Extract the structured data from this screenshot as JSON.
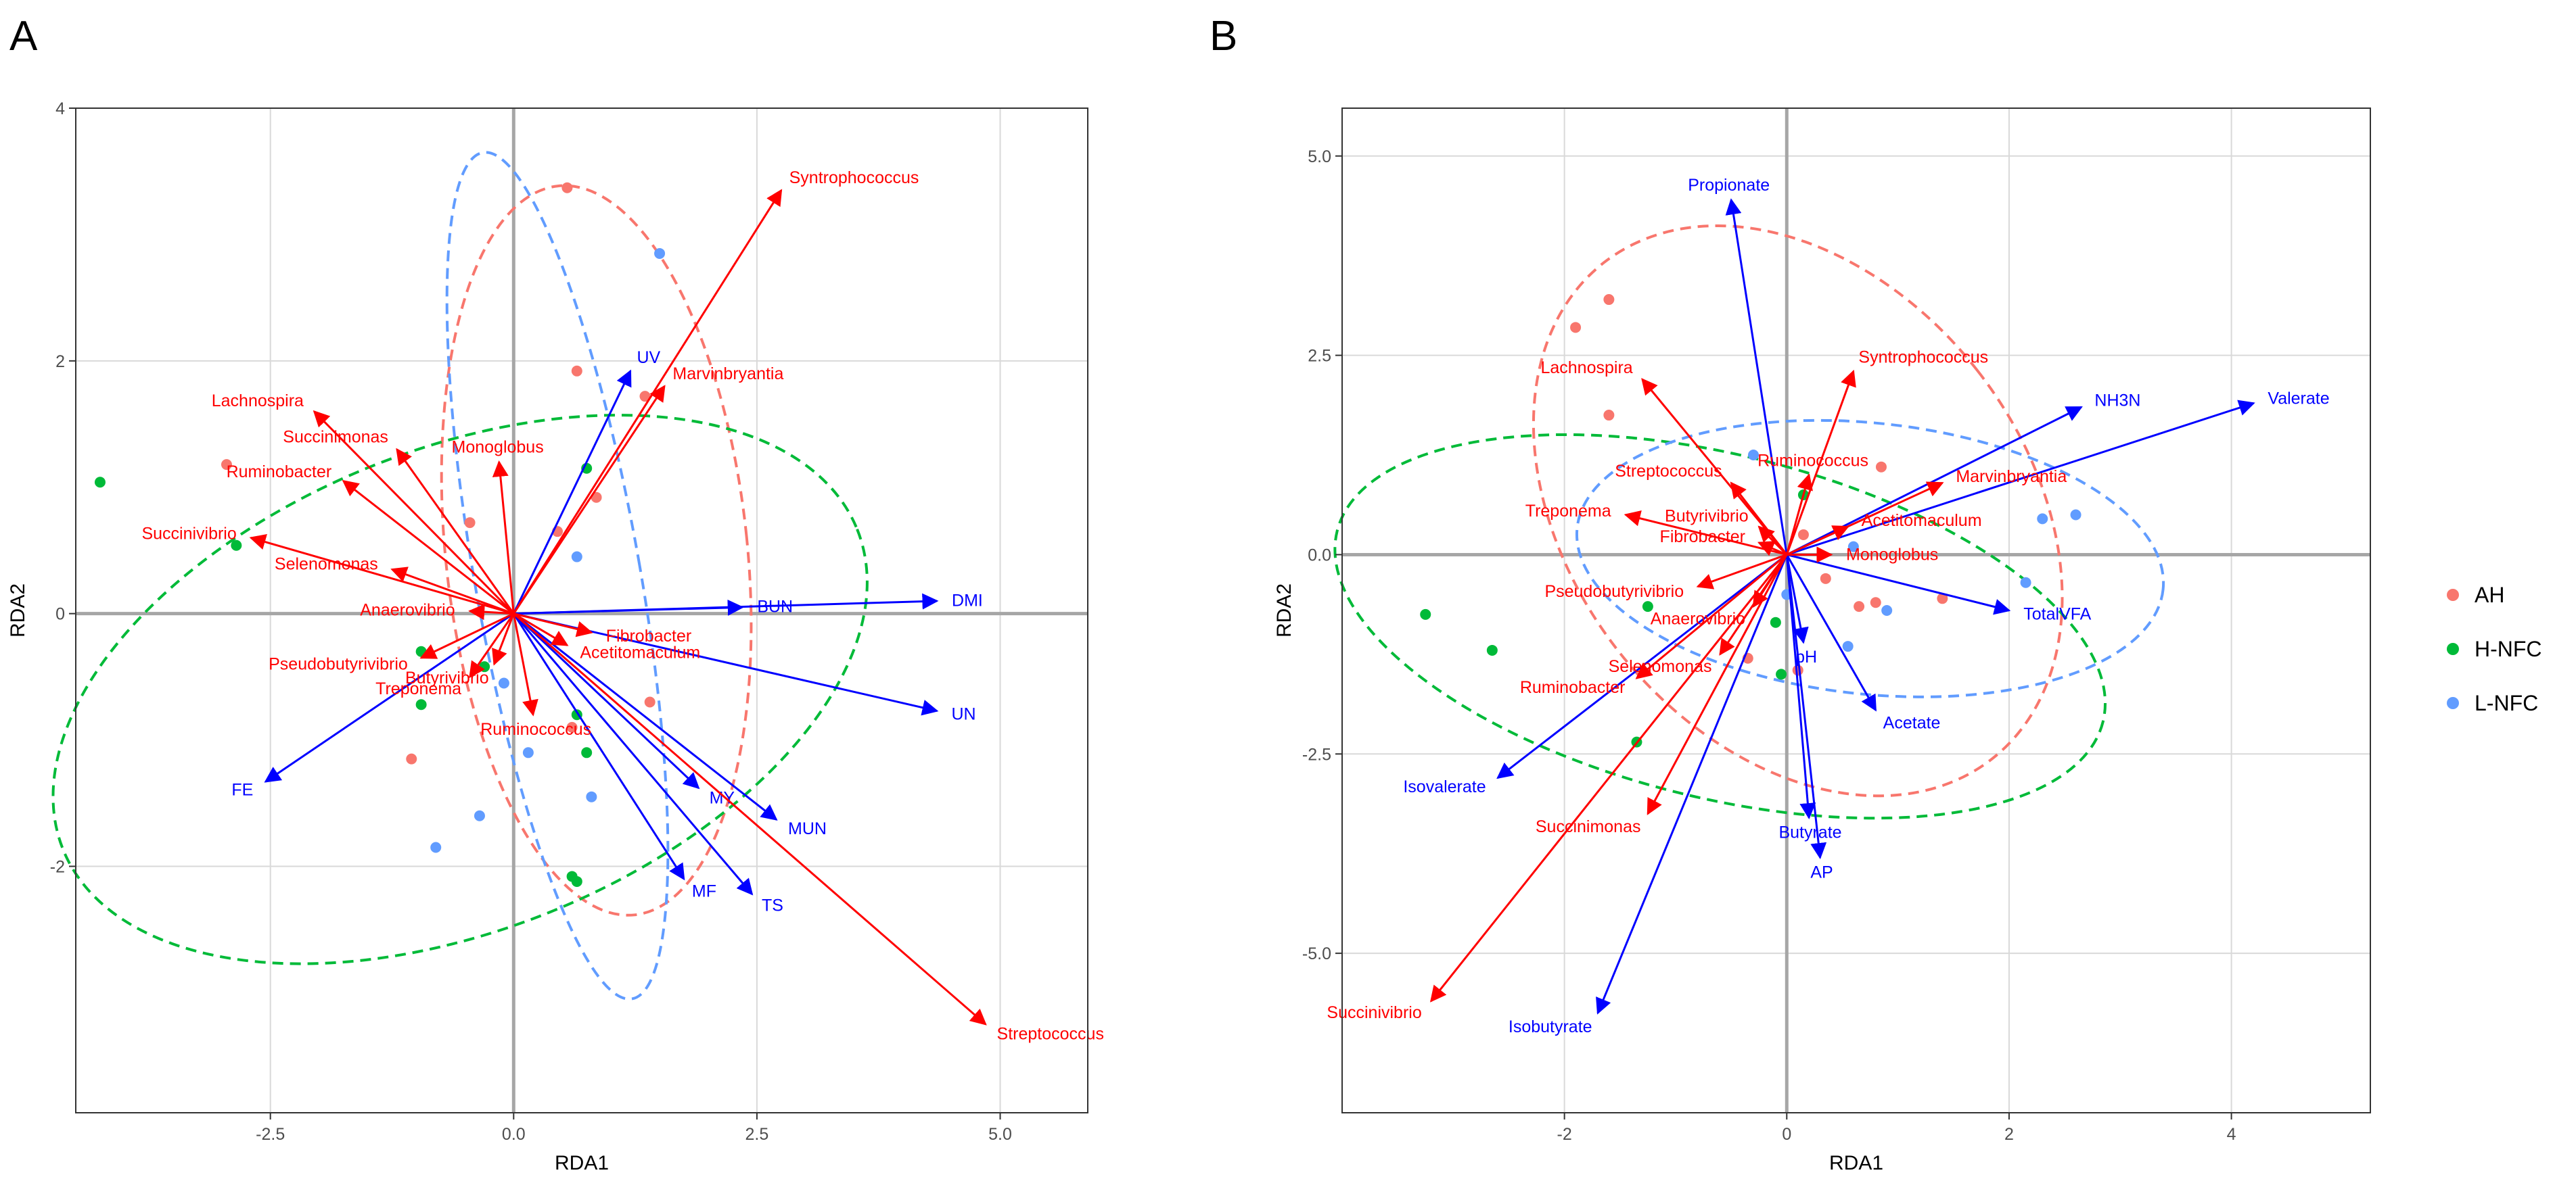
{
  "figure": {
    "panels": [
      "A",
      "B"
    ],
    "legend": {
      "placement": "right",
      "items": [
        {
          "name": "AH",
          "color": "#F8766D"
        },
        {
          "name": "H-NFC",
          "color": "#00BA38"
        },
        {
          "name": "L-NFC",
          "color": "#619CFF"
        }
      ]
    }
  },
  "colors": {
    "bacteria_arrow": "#ff0000",
    "env_arrow": "#0000ff",
    "zero_line": "#a6a6a6",
    "grid": "#d9d9d9"
  },
  "chart_data": [
    {
      "type": "scatter",
      "panel": "A",
      "xlabel": "RDA1",
      "ylabel": "RDA2",
      "xlim": [
        -4.5,
        5.9
      ],
      "ylim": [
        -3.95,
        4.0
      ],
      "xticks": [
        -2.5,
        0.0,
        2.5,
        5.0
      ],
      "xtick_labels": [
        "-2.5",
        "0.0",
        "2.5",
        "5.0"
      ],
      "yticks": [
        -2,
        0,
        2,
        4
      ],
      "ytick_labels": [
        "-2",
        "0",
        "2",
        "4"
      ],
      "points": [
        {
          "group": "AH",
          "x": 0.55,
          "y": 3.37
        },
        {
          "group": "AH",
          "x": 0.65,
          "y": 1.92
        },
        {
          "group": "AH",
          "x": 1.35,
          "y": 1.72
        },
        {
          "group": "AH",
          "x": 0.85,
          "y": 0.92
        },
        {
          "group": "AH",
          "x": 0.45,
          "y": 0.65
        },
        {
          "group": "AH",
          "x": -0.45,
          "y": 0.72
        },
        {
          "group": "AH",
          "x": -2.95,
          "y": 1.18
        },
        {
          "group": "AH",
          "x": -1.05,
          "y": -1.15
        },
        {
          "group": "AH",
          "x": 1.4,
          "y": -0.7
        },
        {
          "group": "AH",
          "x": 0.6,
          "y": -0.9
        },
        {
          "group": "H-NFC",
          "x": -4.25,
          "y": 1.04
        },
        {
          "group": "H-NFC",
          "x": -2.85,
          "y": 0.54
        },
        {
          "group": "H-NFC",
          "x": -0.95,
          "y": -0.3
        },
        {
          "group": "H-NFC",
          "x": -0.3,
          "y": -0.42
        },
        {
          "group": "H-NFC",
          "x": -0.95,
          "y": -0.72
        },
        {
          "group": "H-NFC",
          "x": 0.65,
          "y": -0.8
        },
        {
          "group": "H-NFC",
          "x": 0.75,
          "y": -1.1
        },
        {
          "group": "H-NFC",
          "x": 0.75,
          "y": 1.15
        },
        {
          "group": "H-NFC",
          "x": 0.6,
          "y": -2.08
        },
        {
          "group": "H-NFC",
          "x": 0.65,
          "y": -2.12
        },
        {
          "group": "L-NFC",
          "x": 1.5,
          "y": 2.85
        },
        {
          "group": "L-NFC",
          "x": 0.65,
          "y": 0.45
        },
        {
          "group": "L-NFC",
          "x": -0.1,
          "y": -0.55
        },
        {
          "group": "L-NFC",
          "x": 0.15,
          "y": -1.1
        },
        {
          "group": "L-NFC",
          "x": 0.8,
          "y": -1.45
        },
        {
          "group": "L-NFC",
          "x": -0.35,
          "y": -1.6
        },
        {
          "group": "L-NFC",
          "x": -0.8,
          "y": -1.85
        }
      ],
      "ellipses": [
        {
          "group": "AH",
          "cx": 0.85,
          "cy": 0.5,
          "rx": 1.55,
          "ry": 2.9,
          "angle": -6
        },
        {
          "group": "H-NFC",
          "cx": -0.55,
          "cy": -0.6,
          "rx": 4.4,
          "ry": 1.9,
          "angle": -22
        },
        {
          "group": "L-NFC",
          "cx": 0.45,
          "cy": 0.3,
          "rx": 0.85,
          "ry": 3.4,
          "angle": -10
        }
      ],
      "species_arrows": [
        {
          "label": "Syntrophococcus",
          "x": 2.75,
          "y": 3.35
        },
        {
          "label": "Marvinbryantia",
          "x": 1.55,
          "y": 1.8
        },
        {
          "label": "Lachnospira",
          "x": -2.05,
          "y": 1.6
        },
        {
          "label": "Succinimonas",
          "x": -1.2,
          "y": 1.3
        },
        {
          "label": "Monoglobus",
          "x": -0.15,
          "y": 1.2
        },
        {
          "label": "Ruminobacter",
          "x": -1.75,
          "y": 1.05
        },
        {
          "label": "Succinivibrio",
          "x": -2.7,
          "y": 0.6
        },
        {
          "label": "Selenomonas",
          "x": -1.25,
          "y": 0.35
        },
        {
          "label": "Anaerovibrio",
          "x": -0.45,
          "y": 0.02
        },
        {
          "label": "Pseudobutyrivibrio",
          "x": -0.95,
          "y": -0.35
        },
        {
          "label": "Butyrivibrio",
          "x": -0.2,
          "y": -0.4
        },
        {
          "label": "Treponema",
          "x": -0.45,
          "y": -0.5
        },
        {
          "label": "Ruminococcus",
          "x": 0.2,
          "y": -0.8
        },
        {
          "label": "Fibrobacter",
          "x": 0.8,
          "y": -0.15
        },
        {
          "label": "Acetitomaculum",
          "x": 0.55,
          "y": -0.25
        },
        {
          "label": "Streptococcus",
          "x": 4.85,
          "y": -3.25
        }
      ],
      "env_arrows": [
        {
          "label": "UV",
          "x": 1.2,
          "y": 1.92
        },
        {
          "label": "DMI",
          "x": 4.35,
          "y": 0.1
        },
        {
          "label": "BUN",
          "x": 2.35,
          "y": 0.05
        },
        {
          "label": "UN",
          "x": 4.35,
          "y": -0.77
        },
        {
          "label": "FE",
          "x": -2.55,
          "y": -1.33
        },
        {
          "label": "MY",
          "x": 1.9,
          "y": -1.38
        },
        {
          "label": "MUN",
          "x": 2.7,
          "y": -1.63
        },
        {
          "label": "MF",
          "x": 1.75,
          "y": -2.1
        },
        {
          "label": "TS",
          "x": 2.45,
          "y": -2.22
        }
      ]
    },
    {
      "type": "scatter",
      "panel": "B",
      "xlabel": "RDA1",
      "ylabel": "RDA2",
      "xlim": [
        -4.0,
        5.25
      ],
      "ylim": [
        -7.0,
        5.6
      ],
      "xticks": [
        -2,
        0,
        2,
        4
      ],
      "xtick_labels": [
        "-2",
        "0",
        "2",
        "4"
      ],
      "yticks": [
        -5.0,
        -2.5,
        0.0,
        2.5,
        5.0
      ],
      "ytick_labels": [
        "-5.0",
        "-2.5",
        "0.0",
        "2.5",
        "5.0"
      ],
      "points": [
        {
          "group": "AH",
          "x": -1.9,
          "y": 2.85
        },
        {
          "group": "AH",
          "x": -1.6,
          "y": 3.2
        },
        {
          "group": "AH",
          "x": -1.6,
          "y": 1.75
        },
        {
          "group": "AH",
          "x": 0.85,
          "y": 1.1
        },
        {
          "group": "AH",
          "x": 0.15,
          "y": 0.25
        },
        {
          "group": "AH",
          "x": 0.35,
          "y": -0.3
        },
        {
          "group": "AH",
          "x": 0.8,
          "y": -0.6
        },
        {
          "group": "AH",
          "x": 0.65,
          "y": -0.65
        },
        {
          "group": "AH",
          "x": 1.4,
          "y": -0.55
        },
        {
          "group": "AH",
          "x": -0.35,
          "y": -1.3
        },
        {
          "group": "AH",
          "x": 0.1,
          "y": -1.45
        },
        {
          "group": "H-NFC",
          "x": -3.25,
          "y": -0.75
        },
        {
          "group": "H-NFC",
          "x": -2.65,
          "y": -1.2
        },
        {
          "group": "H-NFC",
          "x": -1.25,
          "y": -0.65
        },
        {
          "group": "H-NFC",
          "x": 0.15,
          "y": 0.75
        },
        {
          "group": "H-NFC",
          "x": -0.1,
          "y": -0.85
        },
        {
          "group": "H-NFC",
          "x": -0.05,
          "y": -1.5
        },
        {
          "group": "H-NFC",
          "x": -1.35,
          "y": -2.35
        },
        {
          "group": "L-NFC",
          "x": -0.3,
          "y": 1.25
        },
        {
          "group": "L-NFC",
          "x": 0.6,
          "y": 0.1
        },
        {
          "group": "L-NFC",
          "x": 0.0,
          "y": -0.5
        },
        {
          "group": "L-NFC",
          "x": 0.9,
          "y": -0.7
        },
        {
          "group": "L-NFC",
          "x": 0.55,
          "y": -1.15
        },
        {
          "group": "L-NFC",
          "x": 2.3,
          "y": 0.45
        },
        {
          "group": "L-NFC",
          "x": 2.6,
          "y": 0.5
        },
        {
          "group": "L-NFC",
          "x": 2.15,
          "y": -0.35
        }
      ],
      "ellipses": [
        {
          "group": "AH",
          "cx": 0.1,
          "cy": 0.55,
          "rx": 2.05,
          "ry": 3.95,
          "angle": -38
        },
        {
          "group": "H-NFC",
          "cx": -0.6,
          "cy": -0.9,
          "rx": 3.55,
          "ry": 2.15,
          "angle": 14
        },
        {
          "group": "L-NFC",
          "cx": 0.75,
          "cy": -0.05,
          "rx": 2.65,
          "ry": 1.7,
          "angle": 6
        }
      ],
      "species_arrows": [
        {
          "label": "Lachnospira",
          "x": -1.3,
          "y": 2.2
        },
        {
          "label": "Syntrophococcus",
          "x": 0.6,
          "y": 2.3
        },
        {
          "label": "Ruminococcus",
          "x": 0.2,
          "y": 1.0
        },
        {
          "label": "Streptococcus",
          "x": -0.5,
          "y": 0.9
        },
        {
          "label": "Marvinbryantia",
          "x": 1.4,
          "y": 0.9
        },
        {
          "label": "Butyrivibrio",
          "x": -0.25,
          "y": 0.35
        },
        {
          "label": "Treponema",
          "x": -1.45,
          "y": 0.5
        },
        {
          "label": "Acetitomaculum",
          "x": 0.55,
          "y": 0.35
        },
        {
          "label": "Fibrobacter",
          "x": -0.25,
          "y": 0.15
        },
        {
          "label": "Monoglobus",
          "x": 0.4,
          "y": 0.0
        },
        {
          "label": "Pseudobutyrivibrio",
          "x": -0.8,
          "y": -0.4
        },
        {
          "label": "Anaerovibrio",
          "x": -0.3,
          "y": -0.65
        },
        {
          "label": "Selenomonas",
          "x": -0.6,
          "y": -1.25
        },
        {
          "label": "Ruminobacter",
          "x": -1.35,
          "y": -1.55
        },
        {
          "label": "Succinimonas",
          "x": -1.25,
          "y": -3.25
        },
        {
          "label": "Succinivibrio",
          "x": -3.2,
          "y": -5.6
        }
      ],
      "env_arrows": [
        {
          "label": "Propionate",
          "x": -0.5,
          "y": 4.45
        },
        {
          "label": "Valerate",
          "x": 4.2,
          "y": 1.9
        },
        {
          "label": "NH3N",
          "x": 2.65,
          "y": 1.85
        },
        {
          "label": "TotalVFA",
          "x": 2.0,
          "y": -0.7
        },
        {
          "label": "pH",
          "x": 0.15,
          "y": -1.1
        },
        {
          "label": "Acetate",
          "x": 0.8,
          "y": -1.95
        },
        {
          "label": "Isovalerate",
          "x": -2.6,
          "y": -2.8
        },
        {
          "label": "Butyrate",
          "x": 0.2,
          "y": -3.3
        },
        {
          "label": "AP",
          "x": 0.3,
          "y": -3.8
        },
        {
          "label": "Isobutyrate",
          "x": -1.7,
          "y": -5.75
        }
      ]
    }
  ]
}
